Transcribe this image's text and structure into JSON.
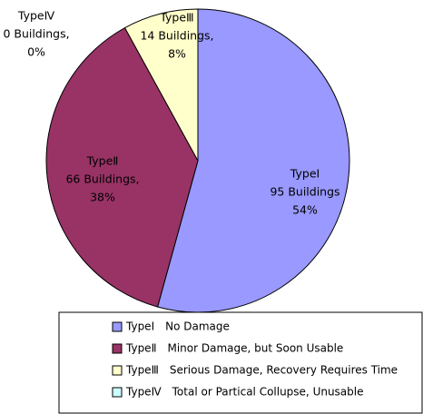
{
  "chart_data": {
    "type": "pie",
    "slice_names": [
      "TypeⅠ",
      "TypeⅡ",
      "TypeⅢ",
      "TypeⅣ"
    ],
    "values": [
      95,
      66,
      14,
      0
    ],
    "value_labels": [
      "95 Buildings",
      "66 Buildings,",
      "14 Buildings,",
      "0 Buildings,"
    ],
    "percents": [
      54,
      38,
      8,
      0
    ],
    "percent_labels": [
      "54%",
      "38%",
      "8%",
      "0%"
    ],
    "categories": [
      "TypeⅠ　No Damage",
      "TypeⅡ　Minor Damage, but Soon Usable",
      "TypeⅢ　Serious Damage, Recovery Requires Time",
      "TypeⅣ　Total or Partical Collupse, Unusable"
    ],
    "colors": [
      "#9999ff",
      "#993366",
      "#ffffcc",
      "#ccffff"
    ],
    "legend": "bottom"
  }
}
